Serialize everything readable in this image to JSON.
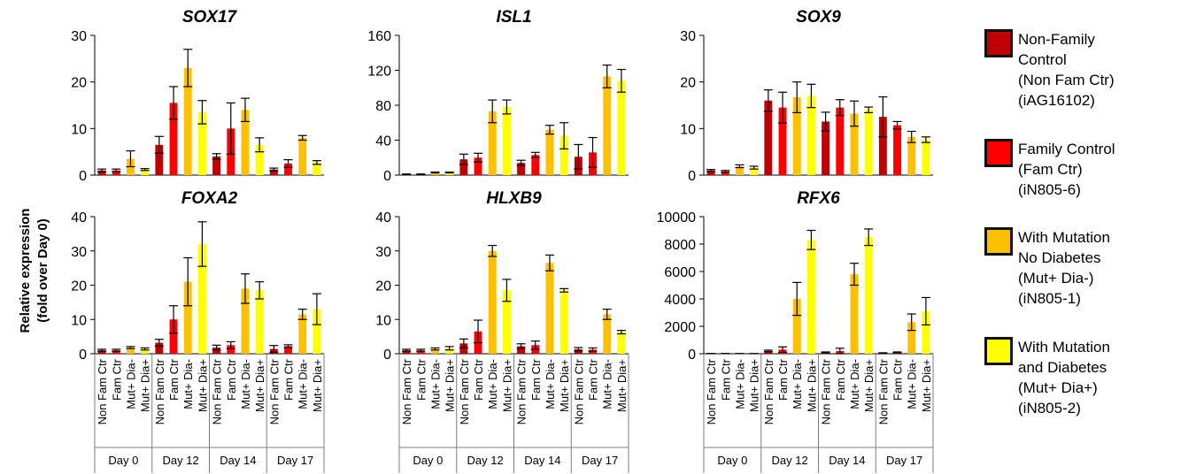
{
  "y_axis_label": [
    "Relative expression",
    "(fold over Day 0)"
  ],
  "colors": {
    "Non Fam Ctr": "#c00000",
    "Fam Ctr": "#ff0000",
    "Mut+ Dia-": "#ffc000",
    "Mut+ Dia+": "#ffff00"
  },
  "legend": [
    {
      "lines": [
        "Non-Family",
        "Control",
        "(Non Fam Ctr)",
        "(iAG16102)"
      ],
      "color": "#c00000"
    },
    {
      "lines": [
        "Family Control",
        "(Fam Ctr)",
        "(iN805-6)"
      ],
      "color": "#ff0000"
    },
    {
      "lines": [
        "With Mutation",
        "No Diabetes",
        "(Mut+ Dia-)",
        "(iN805-1)"
      ],
      "color": "#ffc000"
    },
    {
      "lines": [
        "With Mutation",
        "and Diabetes",
        "(Mut+ Dia+)",
        "(iN805-2)"
      ],
      "color": "#ffff00"
    }
  ],
  "chart_data": [
    {
      "type": "bar",
      "title": "SOX17",
      "groups": [
        "Day 0",
        "Day 12",
        "Day 14",
        "Day 17"
      ],
      "categories": [
        "Non Fam Ctr",
        "Fam Ctr",
        "Mut+ Dia-",
        "Mut+ Dia+"
      ],
      "ylim": [
        0,
        30
      ],
      "yticks": [
        0,
        10,
        20,
        30
      ],
      "values": [
        [
          1,
          1,
          3.5,
          1.2
        ],
        [
          6.5,
          15.5,
          23,
          13.5
        ],
        [
          4,
          10,
          14,
          6.5
        ],
        [
          1.2,
          2.5,
          8,
          2.7
        ]
      ],
      "errors": [
        [
          0.3,
          0.3,
          1.7,
          0.2
        ],
        [
          1.8,
          3.5,
          4,
          2.5
        ],
        [
          0.6,
          5.5,
          2.5,
          1.5
        ],
        [
          0.3,
          0.8,
          0.5,
          0.4
        ]
      ]
    },
    {
      "type": "bar",
      "title": "ISL1",
      "groups": [
        "Day 0",
        "Day 12",
        "Day 14",
        "Day 17"
      ],
      "categories": [
        "Non Fam Ctr",
        "Fam Ctr",
        "Mut+ Dia-",
        "Mut+ Dia+"
      ],
      "ylim": [
        0,
        160
      ],
      "yticks": [
        0,
        40,
        80,
        120,
        160
      ],
      "values": [
        [
          1,
          1,
          3,
          3
        ],
        [
          18,
          20,
          73,
          78
        ],
        [
          14,
          23,
          52,
          45
        ],
        [
          21,
          26,
          113,
          108
        ]
      ],
      "errors": [
        [
          0.3,
          0.3,
          0.5,
          0.5
        ],
        [
          6,
          5,
          13,
          8
        ],
        [
          3,
          3,
          5,
          15
        ],
        [
          14,
          17,
          13,
          13
        ]
      ]
    },
    {
      "type": "bar",
      "title": "SOX9",
      "groups": [
        "Day 0",
        "Day 12",
        "Day 14",
        "Day 17"
      ],
      "categories": [
        "Non Fam Ctr",
        "Fam Ctr",
        "Mut+ Dia-",
        "Mut+ Dia+"
      ],
      "ylim": [
        0,
        30
      ],
      "yticks": [
        0,
        10,
        20,
        30
      ],
      "values": [
        [
          1,
          0.8,
          1.9,
          1.6
        ],
        [
          16,
          14.5,
          16.7,
          17
        ],
        [
          11.5,
          14.5,
          13.2,
          14
        ],
        [
          12.5,
          10.7,
          8.2,
          7.6
        ]
      ],
      "errors": [
        [
          0.2,
          0.2,
          0.3,
          0.3
        ],
        [
          2.3,
          3.3,
          3.3,
          2.5
        ],
        [
          2,
          1.7,
          2.7,
          0.6
        ],
        [
          4.3,
          0.8,
          1.2,
          0.6
        ]
      ]
    },
    {
      "type": "bar",
      "title": "FOXA2",
      "groups": [
        "Day 0",
        "Day 12",
        "Day 14",
        "Day 17"
      ],
      "categories": [
        "Non Fam Ctr",
        "Fam Ctr",
        "Mut+ Dia-",
        "Mut+ Dia+"
      ],
      "ylim": [
        0,
        40
      ],
      "yticks": [
        0,
        10,
        20,
        30,
        40
      ],
      "values": [
        [
          1,
          1,
          1.8,
          1.4
        ],
        [
          3.2,
          10,
          21,
          32
        ],
        [
          1.8,
          2.5,
          19,
          18.5
        ],
        [
          1.4,
          2.2,
          11.5,
          13
        ]
      ],
      "errors": [
        [
          0.3,
          0.3,
          0.3,
          0.3
        ],
        [
          1,
          4,
          7,
          6.5
        ],
        [
          0.7,
          1,
          4.3,
          2.5
        ],
        [
          1,
          0.4,
          1.5,
          4.5
        ]
      ]
    },
    {
      "type": "bar",
      "title": "HLXB9",
      "groups": [
        "Day 0",
        "Day 12",
        "Day 14",
        "Day 17"
      ],
      "categories": [
        "Non Fam Ctr",
        "Fam Ctr",
        "Mut+ Dia-",
        "Mut+ Dia+"
      ],
      "ylim": [
        0,
        40
      ],
      "yticks": [
        0,
        10,
        20,
        30,
        40
      ],
      "values": [
        [
          1,
          1,
          1.4,
          1.6
        ],
        [
          3,
          6.5,
          30,
          18.5
        ],
        [
          2.2,
          2.5,
          26.5,
          18.5
        ],
        [
          1.3,
          1.2,
          11.5,
          6.3
        ]
      ],
      "errors": [
        [
          0.3,
          0.3,
          0.3,
          0.5
        ],
        [
          1.3,
          3.3,
          1.6,
          3.2
        ],
        [
          0.7,
          1.2,
          2.3,
          0.5
        ],
        [
          0.5,
          0.5,
          1.5,
          0.5
        ]
      ]
    },
    {
      "type": "bar",
      "title": "RFX6",
      "groups": [
        "Day 0",
        "Day 12",
        "Day 14",
        "Day 17"
      ],
      "categories": [
        "Non Fam Ctr",
        "Fam Ctr",
        "Mut+ Dia-",
        "Mut+ Dia+"
      ],
      "ylim": [
        0,
        10000
      ],
      "yticks": [
        0,
        2000,
        4000,
        6000,
        8000,
        10000
      ],
      "values": [
        [
          10,
          10,
          10,
          10
        ],
        [
          200,
          300,
          4000,
          8300
        ],
        [
          100,
          200,
          5800,
          8500
        ],
        [
          50,
          100,
          2300,
          3100
        ]
      ],
      "errors": [
        [
          5,
          5,
          5,
          5
        ],
        [
          60,
          200,
          1200,
          700
        ],
        [
          30,
          200,
          800,
          600
        ],
        [
          20,
          30,
          600,
          1000
        ]
      ]
    }
  ]
}
